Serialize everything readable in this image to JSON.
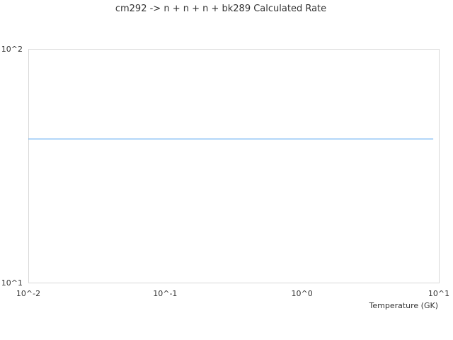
{
  "chart_data": {
    "type": "line",
    "title": "cm292 -> n + n + n + bk289 Calculated Rate",
    "xlabel": "Temperature (GK)",
    "ylabel": "",
    "x_scale": "log",
    "y_scale": "log",
    "xlim": [
      0.01,
      10
    ],
    "ylim": [
      10,
      100
    ],
    "x_ticks": [
      "10^-2",
      "10^-1",
      "10^0",
      "10^1"
    ],
    "y_ticks": [
      "10^1",
      "10^2"
    ],
    "grid": false,
    "series": [
      {
        "color": "#5aa9f0",
        "x": [
          0.01,
          9.1
        ],
        "y": [
          41.2,
          41.2
        ]
      }
    ]
  }
}
